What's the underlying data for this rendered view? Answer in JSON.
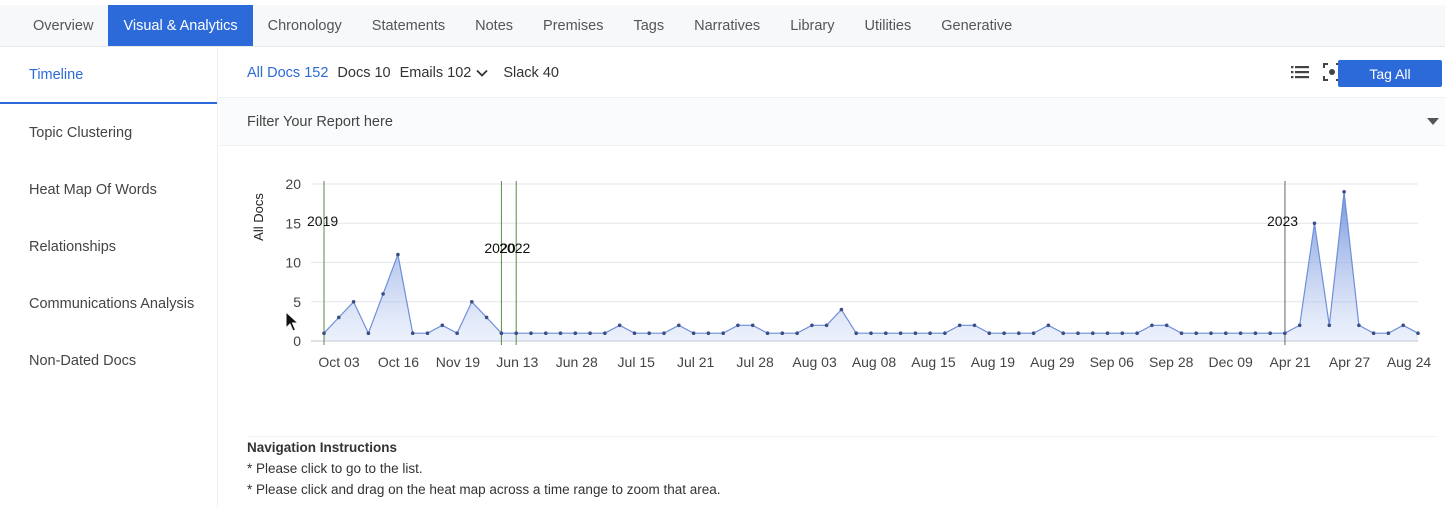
{
  "tabs": [
    {
      "label": "Overview",
      "active": false
    },
    {
      "label": "Visual & Analytics",
      "active": true
    },
    {
      "label": "Chronology",
      "active": false
    },
    {
      "label": "Statements",
      "active": false
    },
    {
      "label": "Notes",
      "active": false
    },
    {
      "label": "Premises",
      "active": false
    },
    {
      "label": "Tags",
      "active": false
    },
    {
      "label": "Narratives",
      "active": false
    },
    {
      "label": "Library",
      "active": false
    },
    {
      "label": "Utilities",
      "active": false
    },
    {
      "label": "Generative",
      "active": false
    }
  ],
  "sidebar": {
    "items": [
      {
        "label": "Timeline",
        "active": true
      },
      {
        "label": "Topic Clustering",
        "active": false
      },
      {
        "label": "Heat Map Of Words",
        "active": false
      },
      {
        "label": "Relationships",
        "active": false
      },
      {
        "label": "Communications Analysis",
        "active": false
      },
      {
        "label": "Non-Dated Docs",
        "active": false
      }
    ]
  },
  "toolbar": {
    "all_docs": "All Docs 152",
    "docs": "Docs 10",
    "emails": "Emails 102",
    "slack": "Slack 40",
    "tag_all_label": "Tag All",
    "icons": [
      "list-icon",
      "focus-icon"
    ]
  },
  "filter": {
    "placeholder": "Filter Your Report here"
  },
  "chart_data": {
    "type": "area",
    "ylabel": "All Docs",
    "ylim": [
      0,
      20
    ],
    "yticks": [
      0,
      5,
      10,
      15,
      20
    ],
    "xtick_labels": [
      "Oct 03",
      "Oct 16",
      "Nov 19",
      "Jun 13",
      "Jun 28",
      "Jul 15",
      "Jul 21",
      "Jul 28",
      "Aug 03",
      "Aug 08",
      "Aug 15",
      "Aug 19",
      "Aug 29",
      "Sep 06",
      "Sep 28",
      "Dec 09",
      "Apr 21",
      "Apr 27",
      "Aug 24"
    ],
    "values": [
      1,
      3,
      5,
      1,
      6,
      11,
      1,
      1,
      2,
      1,
      5,
      3,
      1,
      1,
      1,
      1,
      1,
      1,
      1,
      1,
      2,
      1,
      1,
      1,
      2,
      1,
      1,
      1,
      2,
      2,
      1,
      1,
      1,
      2,
      2,
      4,
      1,
      1,
      1,
      1,
      1,
      1,
      1,
      2,
      2,
      1,
      1,
      1,
      1,
      2,
      1,
      1,
      1,
      1,
      1,
      1,
      2,
      2,
      1,
      1,
      1,
      1,
      1,
      1,
      1,
      1,
      2,
      15,
      2,
      19,
      2,
      1,
      1,
      2,
      1
    ],
    "year_markers": [
      {
        "label": "2019",
        "index": 0
      },
      {
        "label": "2020",
        "index": 12
      },
      {
        "label": "2022",
        "index": 13
      },
      {
        "label": "2023",
        "index": 65
      }
    ],
    "color": "#6f8fd9",
    "grid": true
  },
  "navigation": {
    "title": "Navigation Instructions",
    "lines": [
      "* Please click to go to the list.",
      "* Please click and drag on the heat map across a time range to zoom that area."
    ]
  }
}
